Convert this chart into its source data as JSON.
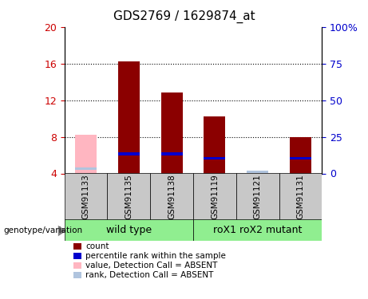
{
  "title": "GDS2769 / 1629874_at",
  "samples": [
    "GSM91133",
    "GSM91135",
    "GSM91138",
    "GSM91119",
    "GSM91121",
    "GSM91131"
  ],
  "ylim": [
    4,
    20
  ],
  "yticks": [
    4,
    8,
    12,
    16,
    20
  ],
  "right_ytick_labels": [
    "0",
    "25",
    "50",
    "75",
    "100%"
  ],
  "count_values": [
    4.3,
    16.2,
    12.8,
    10.2,
    4.15,
    8.0
  ],
  "rank_values": [
    4.35,
    6.0,
    6.0,
    5.5,
    4.2,
    5.5
  ],
  "count_color": "#8B0000",
  "rank_color": "#0000CD",
  "absent_value_color": "#FFB6C1",
  "absent_rank_color": "#B0C4DE",
  "bg_color": "#FFFFFF",
  "axis_color_left": "#CC0000",
  "axis_color_right": "#0000CC",
  "genotype_label": "genotype/variation",
  "group_bg_color": "#90EE90",
  "sample_bg_color": "#C8C8C8",
  "wild_type_label": "wild type",
  "mutant_label": "roX1 roX2 mutant",
  "legend_items": [
    [
      "#8B0000",
      "count"
    ],
    [
      "#0000CD",
      "percentile rank within the sample"
    ],
    [
      "#FFB6C1",
      "value, Detection Call = ABSENT"
    ],
    [
      "#B0C4DE",
      "rank, Detection Call = ABSENT"
    ]
  ]
}
